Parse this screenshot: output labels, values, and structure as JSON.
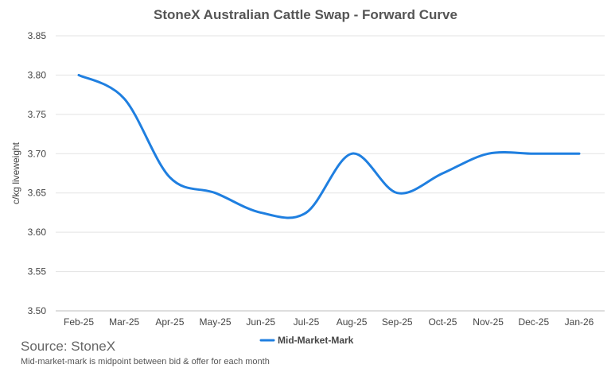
{
  "chart_data": {
    "type": "line",
    "title": "StoneX Australian Cattle Swap - Forward Curve",
    "xlabel": "",
    "ylabel": "c/kg liveweight",
    "categories": [
      "Feb-25",
      "Mar-25",
      "Apr-25",
      "May-25",
      "Jun-25",
      "Jul-25",
      "Aug-25",
      "Sep-25",
      "Oct-25",
      "Nov-25",
      "Dec-25",
      "Jan-26"
    ],
    "series": [
      {
        "name": "Mid-Market-Mark",
        "color": "#1f7fe0",
        "values": [
          3.8,
          3.77,
          3.67,
          3.65,
          3.625,
          3.625,
          3.7,
          3.65,
          3.675,
          3.7,
          3.7,
          3.7
        ]
      }
    ],
    "ylim": [
      3.5,
      3.85
    ],
    "yticks": [
      "3.50",
      "3.55",
      "3.60",
      "3.65",
      "3.70",
      "3.75",
      "3.80",
      "3.85"
    ],
    "grid": "horizontal",
    "legend_position": "bottom-center",
    "smooth": true
  },
  "footer": {
    "source": "Source: StoneX",
    "note": "Mid-market-mark is midpoint between bid & offer for each month"
  }
}
